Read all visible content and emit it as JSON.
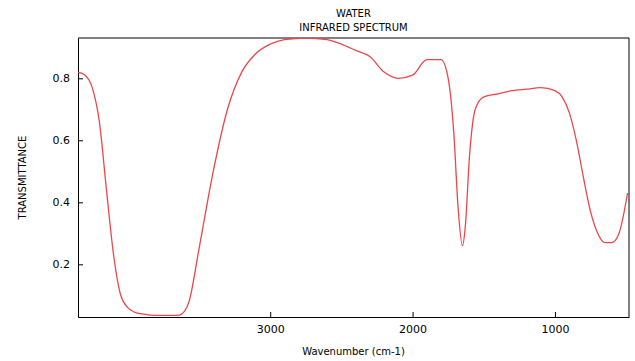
{
  "chart_data": {
    "type": "line",
    "title": "WATER",
    "subtitle": "INFRARED SPECTRUM",
    "x_label": "Wavenumber (cm-1)",
    "y_label": "TRANSMITTANCE",
    "x": [
      4350,
      4300,
      4250,
      4200,
      4150,
      4100,
      4050,
      4000,
      3950,
      3900,
      3800,
      3700,
      3650,
      3600,
      3570,
      3500,
      3400,
      3300,
      3200,
      3100,
      3000,
      2900,
      2750,
      2600,
      2500,
      2400,
      2300,
      2200,
      2100,
      2000,
      1900,
      1800,
      1750,
      1710,
      1680,
      1650,
      1630,
      1600,
      1560,
      1500,
      1400,
      1300,
      1200,
      1100,
      1000,
      950,
      900,
      850,
      800,
      750,
      700,
      650,
      600,
      550,
      490
    ],
    "values": [
      0.82,
      0.81,
      0.77,
      0.66,
      0.44,
      0.23,
      0.1,
      0.06,
      0.045,
      0.04,
      0.035,
      0.035,
      0.035,
      0.05,
      0.08,
      0.25,
      0.5,
      0.7,
      0.82,
      0.88,
      0.91,
      0.925,
      0.93,
      0.925,
      0.91,
      0.89,
      0.87,
      0.82,
      0.8,
      0.81,
      0.86,
      0.86,
      0.8,
      0.62,
      0.38,
      0.26,
      0.32,
      0.55,
      0.7,
      0.74,
      0.75,
      0.76,
      0.765,
      0.77,
      0.76,
      0.74,
      0.69,
      0.6,
      0.48,
      0.37,
      0.3,
      0.27,
      0.27,
      0.3,
      0.43
    ],
    "color": "#e8484c",
    "xlim": [
      4350,
      480
    ],
    "xticks": [
      3000,
      2000,
      1000
    ],
    "ylim": [
      0.03,
      0.93
    ],
    "yticks": [
      0.2,
      0.4,
      0.6,
      0.8
    ],
    "grid": false
  }
}
